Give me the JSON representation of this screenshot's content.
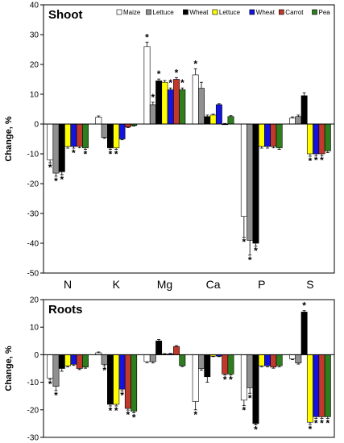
{
  "chart_data": [
    {
      "type": "bar",
      "title": "Shoot",
      "xlabel": "",
      "ylabel": "Change, %",
      "ylim": [
        -50,
        40
      ],
      "yticks": [
        -50,
        -40,
        -30,
        -20,
        -10,
        0,
        10,
        20,
        30,
        40
      ],
      "grid": false,
      "legend_position": "top-right",
      "categories": [
        "N",
        "K",
        "Mg",
        "Ca",
        "P",
        "S"
      ],
      "series": [
        {
          "name": "Maize",
          "color": "#ffffff",
          "values": [
            -12,
            2.3,
            26,
            16.5,
            -31,
            2
          ]
        },
        {
          "name": "Lettuce",
          "color": "#909090",
          "values": [
            -16.5,
            -4.5,
            6.5,
            12,
            -39,
            2.5
          ]
        },
        {
          "name": "Wheat",
          "color": "#000000",
          "values": [
            -16,
            -8,
            14.5,
            2.5,
            -40,
            9.5
          ]
        },
        {
          "name": "Lettuce",
          "color": "#ffff00",
          "values": [
            -7.5,
            -8,
            14,
            3,
            -7.5,
            -10
          ]
        },
        {
          "name": "Wheat",
          "color": "#1414e0",
          "values": [
            -7.5,
            -5,
            11.5,
            6.5,
            -7.5,
            -10
          ]
        },
        {
          "name": "Carrot",
          "color": "#c0392b",
          "values": [
            -7.5,
            -1,
            15,
            0,
            -7.5,
            -10
          ]
        },
        {
          "name": "Pea",
          "color": "#2e7d1e",
          "values": [
            -8,
            -0.5,
            11.5,
            2.5,
            -8,
            -9
          ]
        }
      ],
      "error_bars": [
        [
          1,
          0.4,
          1.5,
          2,
          7,
          0.4
        ],
        [
          1,
          0.3,
          0.8,
          2,
          5,
          0.5
        ],
        [
          1,
          0.5,
          0.6,
          0.5,
          1,
          1
        ],
        [
          0.6,
          0.5,
          0.6,
          0.3,
          0.6,
          0.8
        ],
        [
          0.6,
          0.3,
          0.6,
          0.3,
          0.6,
          0.6
        ],
        [
          0.5,
          0.2,
          0.6,
          0.2,
          0.5,
          0.6
        ],
        [
          0.5,
          0.2,
          0.6,
          0.3,
          0.5,
          0.6
        ]
      ],
      "significance_markers": [
        [
          1,
          0,
          1,
          1,
          1,
          0
        ],
        [
          1,
          0,
          1,
          0,
          1,
          0
        ],
        [
          1,
          1,
          1,
          0,
          1,
          0
        ],
        [
          0,
          1,
          0,
          0,
          0,
          1
        ],
        [
          1,
          0,
          1,
          0,
          0,
          1
        ],
        [
          0,
          0,
          1,
          0,
          0,
          1
        ],
        [
          1,
          0,
          1,
          0,
          0,
          0
        ]
      ]
    },
    {
      "type": "bar",
      "title": "Roots",
      "xlabel": "",
      "ylabel": "Change, %",
      "ylim": [
        -30,
        20
      ],
      "yticks": [
        -30,
        -20,
        -10,
        0,
        10,
        20
      ],
      "grid": false,
      "categories": [
        "N",
        "K",
        "Mg",
        "Ca",
        "P",
        "S"
      ],
      "series": [
        {
          "name": "Maize",
          "color": "#ffffff",
          "values": [
            -8.5,
            0.7,
            -2.5,
            -17,
            -16.5,
            -1.5
          ]
        },
        {
          "name": "Lettuce",
          "color": "#909090",
          "values": [
            -11.5,
            -3.5,
            -2.5,
            -5,
            -12,
            -3
          ]
        },
        {
          "name": "Wheat",
          "color": "#000000",
          "values": [
            -5,
            -18,
            5,
            -8,
            -25,
            15.5
          ]
        },
        {
          "name": "Lettuce",
          "color": "#ffff00",
          "values": [
            -4,
            -18,
            0.2,
            -0.5,
            -4,
            -24.5
          ]
        },
        {
          "name": "Wheat",
          "color": "#1414e0",
          "values": [
            -3.5,
            -12.5,
            0.3,
            -0.5,
            -4,
            -22.5
          ]
        },
        {
          "name": "Carrot",
          "color": "#c0392b",
          "values": [
            -5,
            -19.5,
            3,
            -7,
            -4.5,
            -22.5
          ]
        },
        {
          "name": "Pea",
          "color": "#2e7d1e",
          "values": [
            -4.5,
            -20.5,
            -4,
            -7,
            -4,
            -22.5
          ]
        }
      ],
      "error_bars": [
        [
          0.5,
          0.3,
          0.4,
          3,
          2,
          0.3
        ],
        [
          1.5,
          0.5,
          0.5,
          0.6,
          2,
          0.4
        ],
        [
          1,
          0.6,
          0.5,
          2,
          0.5,
          0.5
        ],
        [
          0.4,
          0.6,
          0.2,
          0.2,
          0.4,
          0.8
        ],
        [
          0.4,
          0.6,
          0.2,
          0.2,
          0.4,
          0.6
        ],
        [
          0.4,
          0.6,
          0.3,
          0.4,
          0.4,
          0.6
        ],
        [
          0.4,
          0.6,
          0.3,
          0.4,
          0.4,
          0.6
        ]
      ],
      "significance_markers": [
        [
          1,
          0,
          0,
          1,
          1,
          0
        ],
        [
          1,
          1,
          0,
          0,
          1,
          0
        ],
        [
          0,
          1,
          0,
          0,
          1,
          1
        ],
        [
          0,
          1,
          0,
          0,
          0,
          1
        ],
        [
          0,
          1,
          0,
          0,
          0,
          1
        ],
        [
          0,
          1,
          0,
          1,
          0,
          1
        ],
        [
          0,
          1,
          0,
          1,
          0,
          1
        ]
      ]
    }
  ],
  "significance_symbol": "*"
}
